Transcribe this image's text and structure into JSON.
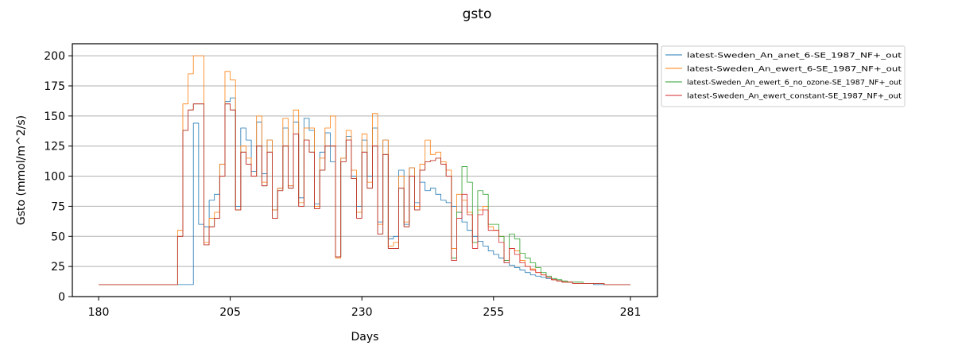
{
  "chart_data": {
    "type": "line",
    "title": "gsto",
    "xlabel": "Days",
    "ylabel": "Gsto (mmol/m^2/s)",
    "xlim": [
      180,
      281
    ],
    "ylim": [
      0,
      210
    ],
    "xticks": [
      180,
      205,
      230,
      255,
      281
    ],
    "yticks": [
      0,
      25,
      50,
      75,
      100,
      125,
      150,
      175,
      200
    ],
    "grid": {
      "y": true,
      "x": false
    },
    "legend_position": "outside-top-right",
    "series": [
      {
        "name": "latest-Sweden_An_anet_6-SE_1987_NF+_out",
        "color": "#1f77b4",
        "x": [
          180,
          194,
          195,
          196,
          197,
          197.5,
          198,
          199,
          200,
          201,
          202,
          203,
          204,
          205,
          206,
          207,
          208,
          209,
          210,
          211,
          212,
          213,
          214,
          215,
          216,
          217,
          218,
          219,
          220,
          221,
          222,
          223,
          224,
          225,
          226,
          227,
          228,
          229,
          230,
          231,
          232,
          233,
          234,
          235,
          236,
          237,
          238,
          239,
          240,
          241,
          242,
          243,
          244,
          245,
          246,
          247,
          248,
          249,
          250,
          251,
          252,
          253,
          254,
          255,
          256,
          257,
          258,
          259,
          260,
          261,
          262,
          263,
          264,
          265,
          266,
          267,
          268,
          269,
          270,
          272,
          274,
          276,
          278,
          280,
          281
        ],
        "y": [
          10,
          10,
          10,
          10,
          10,
          10,
          144,
          60,
          58,
          80,
          85,
          110,
          162,
          165,
          75,
          140,
          130,
          104,
          145,
          102,
          130,
          72,
          90,
          140,
          92,
          145,
          82,
          148,
          138,
          77,
          120,
          136,
          112,
          33,
          115,
          133,
          100,
          75,
          130,
          100,
          140,
          62,
          130,
          48,
          50,
          105,
          60,
          107,
          78,
          95,
          88,
          90,
          85,
          80,
          78,
          75,
          70,
          62,
          55,
          50,
          46,
          42,
          38,
          35,
          32,
          28,
          26,
          24,
          22,
          20,
          18,
          17,
          16,
          15,
          14,
          13,
          12,
          12,
          11,
          11,
          10,
          10,
          10,
          10,
          10
        ]
      },
      {
        "name": "latest-Sweden_An_ewert_6-SE_1987_NF+_out",
        "color": "#ff7f0e",
        "x": [
          180,
          194,
          195,
          196,
          197,
          198,
          199,
          200,
          201,
          202,
          203,
          204,
          205,
          206,
          207,
          208,
          209,
          210,
          211,
          212,
          213,
          214,
          215,
          216,
          217,
          218,
          219,
          220,
          221,
          222,
          223,
          224,
          225,
          226,
          227,
          228,
          229,
          230,
          231,
          232,
          233,
          234,
          235,
          236,
          237,
          238,
          239,
          240,
          241,
          242,
          243,
          244,
          245,
          246,
          247,
          248,
          249,
          250,
          251,
          252,
          253,
          254,
          255,
          256,
          257,
          258,
          259,
          260,
          261,
          262,
          263,
          264,
          265,
          266,
          267,
          268,
          269,
          270,
          272,
          274,
          276,
          278,
          280,
          281
        ],
        "y": [
          10,
          10,
          55,
          160,
          185,
          200,
          200,
          45,
          65,
          70,
          110,
          187,
          180,
          72,
          125,
          115,
          100,
          150,
          95,
          130,
          72,
          90,
          148,
          92,
          155,
          78,
          140,
          140,
          75,
          115,
          140,
          150,
          32,
          115,
          138,
          105,
          70,
          135,
          95,
          152,
          60,
          130,
          42,
          45,
          100,
          62,
          107,
          75,
          110,
          130,
          118,
          120,
          112,
          105,
          40,
          85,
          80,
          70,
          45,
          72,
          75,
          58,
          55,
          50,
          30,
          40,
          38,
          30,
          25,
          23,
          20,
          18,
          16,
          14,
          13,
          12,
          12,
          11,
          11,
          11,
          10,
          10,
          10,
          10
        ]
      },
      {
        "name": "latest-Sweden_An_ewert_6_no_ozone-SE_1987_NF+_out",
        "color": "#2ca02c",
        "x": [
          180,
          194,
          195,
          196,
          197,
          198,
          199,
          200,
          201,
          202,
          203,
          204,
          205,
          206,
          207,
          208,
          209,
          210,
          211,
          212,
          213,
          214,
          215,
          216,
          217,
          218,
          219,
          220,
          221,
          222,
          223,
          224,
          225,
          226,
          227,
          228,
          229,
          230,
          231,
          232,
          233,
          234,
          235,
          236,
          237,
          238,
          239,
          240,
          241,
          242,
          243,
          244,
          245,
          246,
          247,
          248,
          249,
          250,
          251,
          252,
          253,
          254,
          255,
          256,
          257,
          258,
          259,
          260,
          261,
          262,
          263,
          264,
          265,
          266,
          267,
          268,
          269,
          270,
          272,
          274,
          276,
          278,
          280,
          281
        ],
        "y": [
          10,
          10,
          50,
          138,
          155,
          160,
          160,
          43,
          58,
          65,
          100,
          160,
          155,
          72,
          120,
          110,
          100,
          125,
          92,
          120,
          65,
          88,
          125,
          90,
          135,
          75,
          130,
          120,
          73,
          105,
          125,
          125,
          33,
          112,
          130,
          98,
          65,
          120,
          90,
          125,
          52,
          118,
          40,
          40,
          90,
          58,
          100,
          72,
          105,
          112,
          113,
          115,
          110,
          100,
          32,
          70,
          108,
          95,
          45,
          88,
          85,
          60,
          60,
          50,
          30,
          52,
          48,
          36,
          32,
          28,
          24,
          20,
          17,
          15,
          14,
          13,
          12,
          12,
          11,
          11,
          10,
          10,
          10,
          10
        ]
      },
      {
        "name": "latest-Sweden_An_ewert_constant-SE_1987_NF+_out",
        "color": "#d62728",
        "x": [
          180,
          194,
          195,
          196,
          197,
          198,
          199,
          200,
          201,
          202,
          203,
          204,
          205,
          206,
          207,
          208,
          209,
          210,
          211,
          212,
          213,
          214,
          215,
          216,
          217,
          218,
          219,
          220,
          221,
          222,
          223,
          224,
          225,
          226,
          227,
          228,
          229,
          230,
          231,
          232,
          233,
          234,
          235,
          236,
          237,
          238,
          239,
          240,
          241,
          242,
          243,
          244,
          245,
          246,
          247,
          248,
          249,
          250,
          251,
          252,
          253,
          254,
          255,
          256,
          257,
          258,
          259,
          260,
          261,
          262,
          263,
          264,
          265,
          266,
          267,
          268,
          269,
          270,
          272,
          274,
          276,
          278,
          280,
          281
        ],
        "y": [
          10,
          10,
          50,
          138,
          155,
          160,
          160,
          43,
          58,
          65,
          100,
          160,
          155,
          72,
          120,
          110,
          100,
          125,
          92,
          120,
          65,
          88,
          125,
          90,
          135,
          75,
          130,
          120,
          73,
          105,
          125,
          125,
          33,
          112,
          130,
          98,
          65,
          120,
          90,
          125,
          52,
          118,
          40,
          40,
          90,
          58,
          100,
          72,
          105,
          112,
          113,
          115,
          110,
          100,
          30,
          65,
          85,
          68,
          40,
          68,
          72,
          55,
          55,
          45,
          28,
          40,
          35,
          28,
          25,
          22,
          20,
          18,
          16,
          14,
          13,
          12,
          12,
          11,
          11,
          11,
          10,
          10,
          10,
          10
        ]
      }
    ]
  }
}
